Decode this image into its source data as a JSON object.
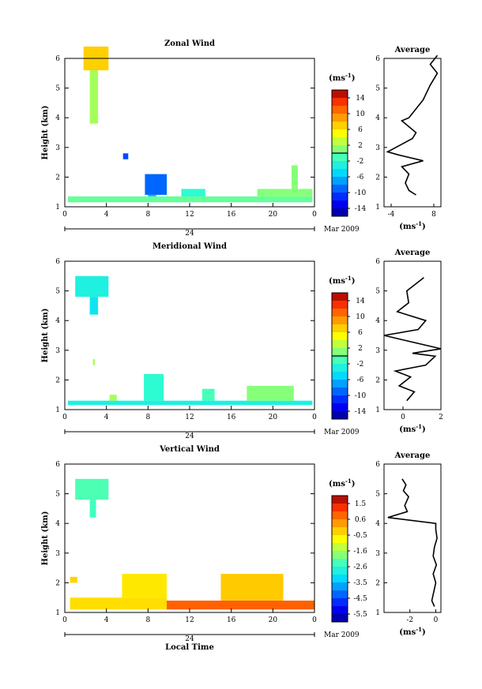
{
  "chart_data": [
    {
      "type": "heatmap",
      "title": "Zonal Wind",
      "ylabel": "Height (km)",
      "xlabel": "",
      "ylim": [
        1,
        6
      ],
      "xlim": [
        0,
        24
      ],
      "x_ticks": [
        "0",
        "4",
        "8",
        "12",
        "16",
        "20",
        "0"
      ],
      "y_ticks": [
        "1",
        "2",
        "3",
        "4",
        "5",
        "6"
      ],
      "day_label": "24",
      "date_label": "Mar 2009",
      "colorbar_unit": "(ms",
      "colorbar_unit_exp": "-1",
      "colorbar_unit_close": ")",
      "colorbar_ticks": [
        "14",
        "10",
        "6",
        "2",
        "-2",
        "-6",
        "-10",
        "-14"
      ],
      "colorbar_range": [
        -16,
        16
      ],
      "zero_level": 0,
      "cells": [
        {
          "t": [
            1.8,
            4.2
          ],
          "h": [
            5.6,
            6.4
          ],
          "v": 7
        },
        {
          "t": [
            2.4,
            3.2
          ],
          "h": [
            3.8,
            5.6
          ],
          "v": 2
        },
        {
          "t": [
            5.6,
            6.1
          ],
          "h": [
            2.6,
            2.8
          ],
          "v": -10
        },
        {
          "t": [
            7.7,
            9.8
          ],
          "h": [
            1.4,
            2.1
          ],
          "v": -9
        },
        {
          "t": [
            8.0,
            8.8
          ],
          "h": [
            1.2,
            1.4
          ],
          "v": -6
        },
        {
          "t": [
            11.2,
            13.5
          ],
          "h": [
            1.3,
            1.6
          ],
          "v": -2
        },
        {
          "t": [
            0.3,
            23.8
          ],
          "h": [
            1.15,
            1.35
          ],
          "v": 0
        },
        {
          "t": [
            18.5,
            23.8
          ],
          "h": [
            1.35,
            1.6
          ],
          "v": 1
        },
        {
          "t": [
            21.8,
            22.4
          ],
          "h": [
            1.6,
            2.4
          ],
          "v": 1
        }
      ],
      "avg": {
        "title": "Average",
        "xlabel": "(ms",
        "xlabel_exp": "-1",
        "xlabel_close": ")",
        "xlim": [
          -6,
          10
        ],
        "x_ticks": [
          "-4",
          "8"
        ],
        "x_tick_values": [
          -4,
          8
        ],
        "y_ticks": [
          "1",
          "2",
          "3",
          "4",
          "5",
          "6"
        ],
        "profile": [
          [
            3,
            1.4
          ],
          [
            1,
            1.55
          ],
          [
            0,
            1.8
          ],
          [
            1,
            2.1
          ],
          [
            -1,
            2.35
          ],
          [
            5,
            2.55
          ],
          [
            -2,
            2.75
          ],
          [
            -5,
            2.85
          ],
          [
            2,
            3.3
          ],
          [
            3,
            3.5
          ],
          [
            -1,
            3.9
          ],
          [
            1,
            4.0
          ],
          [
            5,
            4.6
          ],
          [
            7,
            5.1
          ],
          [
            9,
            5.5
          ],
          [
            7,
            5.8
          ],
          [
            9,
            6.1
          ]
        ]
      }
    },
    {
      "type": "heatmap",
      "title": "Meridional Wind",
      "ylabel": "Height (km)",
      "xlabel": "",
      "ylim": [
        1,
        6
      ],
      "xlim": [
        0,
        24
      ],
      "x_ticks": [
        "0",
        "4",
        "8",
        "12",
        "16",
        "20",
        "0"
      ],
      "y_ticks": [
        "1",
        "2",
        "3",
        "4",
        "5",
        "6"
      ],
      "day_label": "24",
      "date_label": "Mar 2009",
      "colorbar_unit": "(ms",
      "colorbar_unit_exp": "-1",
      "colorbar_unit_close": ")",
      "colorbar_ticks": [
        "14",
        "10",
        "6",
        "2",
        "-2",
        "-6",
        "-10",
        "-14"
      ],
      "colorbar_range": [
        -16,
        16
      ],
      "zero_level": 0,
      "cells": [
        {
          "t": [
            1.0,
            4.2
          ],
          "h": [
            4.8,
            5.5
          ],
          "v": -3
        },
        {
          "t": [
            2.4,
            3.2
          ],
          "h": [
            4.2,
            4.8
          ],
          "v": -4
        },
        {
          "t": [
            2.7,
            2.9
          ],
          "h": [
            2.5,
            2.7
          ],
          "v": 2
        },
        {
          "t": [
            7.6,
            9.5
          ],
          "h": [
            1.3,
            2.2
          ],
          "v": -2
        },
        {
          "t": [
            13.2,
            14.4
          ],
          "h": [
            1.3,
            1.7
          ],
          "v": -1
        },
        {
          "t": [
            0.3,
            23.8
          ],
          "h": [
            1.15,
            1.3
          ],
          "v": -3
        },
        {
          "t": [
            17.5,
            22.0
          ],
          "h": [
            1.3,
            1.8
          ],
          "v": 1
        },
        {
          "t": [
            4.3,
            5.0
          ],
          "h": [
            1.3,
            1.5
          ],
          "v": 2
        }
      ],
      "avg": {
        "title": "Average",
        "xlabel": "(ms",
        "xlabel_exp": "-1",
        "xlabel_close": ")",
        "xlim": [
          -1,
          2
        ],
        "x_ticks": [
          "0",
          "2"
        ],
        "x_tick_values": [
          0,
          2
        ],
        "y_ticks": [
          "1",
          "2",
          "3",
          "4",
          "5",
          "6"
        ],
        "profile": [
          [
            0.2,
            1.3
          ],
          [
            0.6,
            1.6
          ],
          [
            -0.2,
            1.8
          ],
          [
            0.4,
            2.1
          ],
          [
            -0.4,
            2.3
          ],
          [
            1.2,
            2.5
          ],
          [
            1.7,
            2.8
          ],
          [
            0.5,
            2.9
          ],
          [
            2.0,
            3.05
          ],
          [
            -1.0,
            3.5
          ],
          [
            0.8,
            3.7
          ],
          [
            1.2,
            4.0
          ],
          [
            -0.3,
            4.3
          ],
          [
            0.3,
            4.6
          ],
          [
            0.2,
            5.0
          ],
          [
            0.6,
            5.2
          ],
          [
            1.1,
            5.45
          ]
        ]
      }
    },
    {
      "type": "heatmap",
      "title": "Vertical Wind",
      "ylabel": "Height (km)",
      "xlabel": "Local Time",
      "ylim": [
        1,
        6
      ],
      "xlim": [
        0,
        24
      ],
      "x_ticks": [
        "0",
        "4",
        "8",
        "12",
        "16",
        "20",
        "0"
      ],
      "y_ticks": [
        "1",
        "2",
        "3",
        "4",
        "5",
        "6"
      ],
      "day_label": "24",
      "date_label": "Mar 2009",
      "colorbar_unit": "(ms",
      "colorbar_unit_exp": "-1",
      "colorbar_unit_close": ")",
      "colorbar_ticks": [
        "1.5",
        "0.6",
        "-0.5",
        "-1.6",
        "-2.6",
        "-3.5",
        "-4.5",
        "-5.5"
      ],
      "colorbar_range": [
        -6,
        2
      ],
      "zero_level": null,
      "cells": [
        {
          "t": [
            1.0,
            4.2
          ],
          "h": [
            4.8,
            5.5
          ],
          "v": -2.2
        },
        {
          "t": [
            2.4,
            3.0
          ],
          "h": [
            4.2,
            4.8
          ],
          "v": -2.3
        },
        {
          "t": [
            0.5,
            1.2
          ],
          "h": [
            2.0,
            2.2
          ],
          "v": -0.3
        },
        {
          "t": [
            5.5,
            9.8
          ],
          "h": [
            1.5,
            2.3
          ],
          "v": -0.5
        },
        {
          "t": [
            0.5,
            9.8
          ],
          "h": [
            1.1,
            1.5
          ],
          "v": -0.4
        },
        {
          "t": [
            9.8,
            24.0
          ],
          "h": [
            1.1,
            1.4
          ],
          "v": 0.8
        },
        {
          "t": [
            15.0,
            21.0
          ],
          "h": [
            1.4,
            2.3
          ],
          "v": -0.2
        }
      ],
      "avg": {
        "title": "Average",
        "xlabel": "(ms",
        "xlabel_exp": "-1",
        "xlabel_close": ")",
        "xlim": [
          -4,
          0.4
        ],
        "x_ticks": [
          "-2",
          "0"
        ],
        "x_tick_values": [
          -2,
          0
        ],
        "y_ticks": [
          "1",
          "2",
          "3",
          "4",
          "5",
          "6"
        ],
        "profile": [
          [
            -0.1,
            1.2
          ],
          [
            -0.3,
            1.4
          ],
          [
            -0.15,
            1.7
          ],
          [
            0.0,
            2.0
          ],
          [
            -0.2,
            2.3
          ],
          [
            0.05,
            2.6
          ],
          [
            -0.2,
            2.9
          ],
          [
            -0.1,
            3.2
          ],
          [
            0.1,
            3.5
          ],
          [
            0.0,
            3.8
          ],
          [
            0.0,
            4.0
          ],
          [
            -3.7,
            4.2
          ],
          [
            -2.2,
            4.4
          ],
          [
            -2.4,
            4.6
          ],
          [
            -2.1,
            4.9
          ],
          [
            -2.5,
            5.1
          ],
          [
            -2.3,
            5.3
          ],
          [
            -2.6,
            5.5
          ]
        ]
      }
    }
  ]
}
